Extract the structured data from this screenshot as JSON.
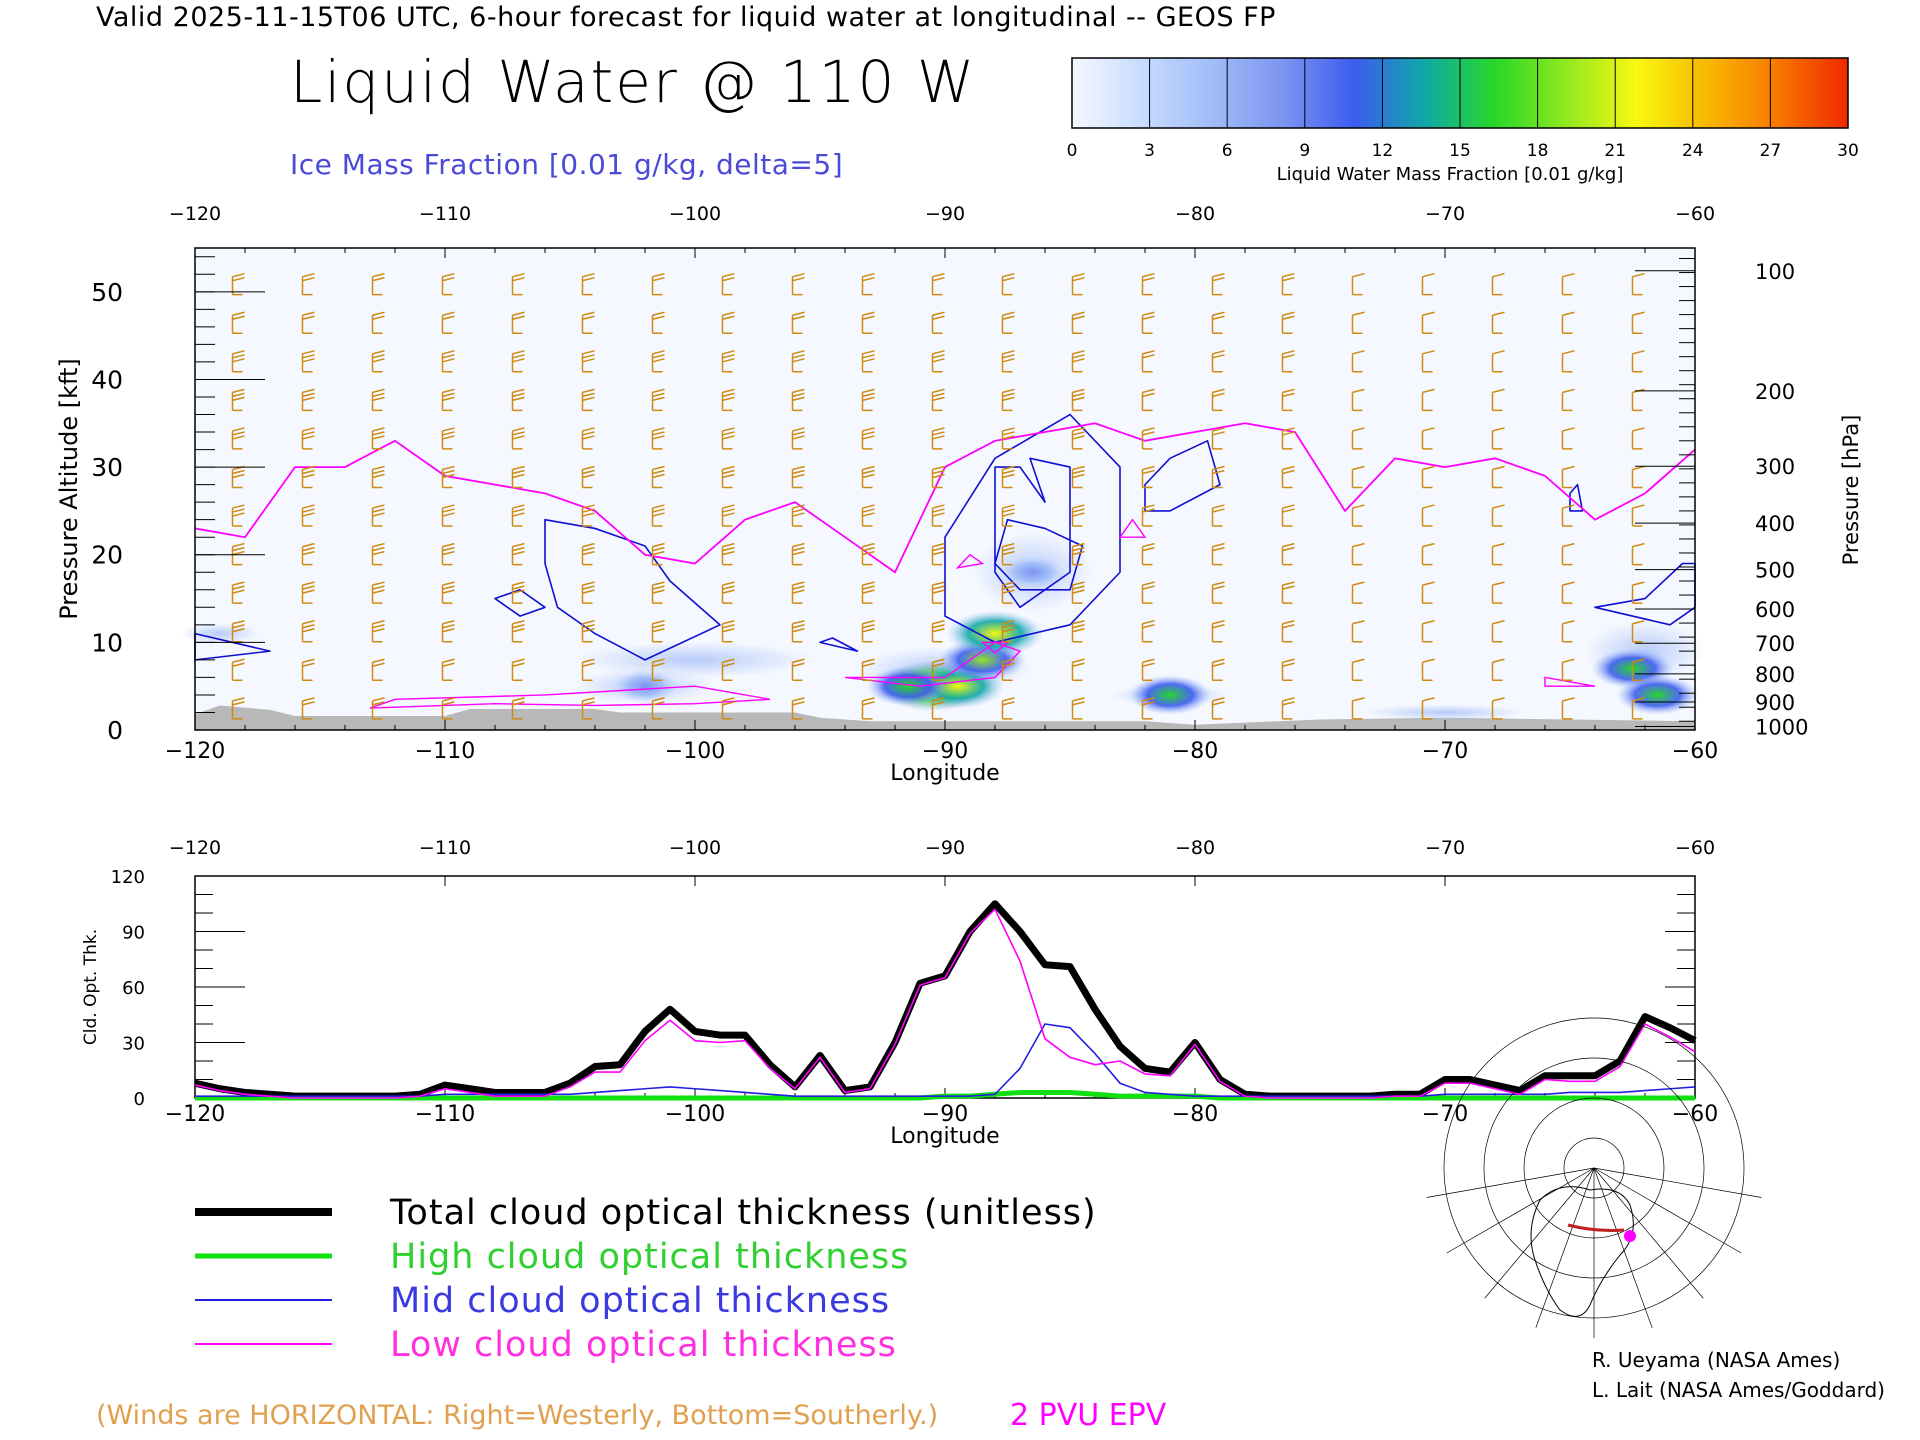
{
  "header": {
    "line": "Valid 2025-11-15T06 UTC, 6-hour forecast for liquid water at longitudinal -- GEOS FP",
    "title": "Liquid Water @ 110 W",
    "subtitle": "Ice Mass Fraction [0.01 g/kg, delta=5]"
  },
  "colorbar": {
    "label": "Liquid Water Mass Fraction [0.01 g/kg]",
    "ticks": [
      "0",
      "3",
      "6",
      "9",
      "12",
      "15",
      "18",
      "21",
      "24",
      "27",
      "30"
    ],
    "colors": [
      "#f4f8ff",
      "#c8dcff",
      "#a0bcf8",
      "#7c94f0",
      "#3c5cf0",
      "#10a8a8",
      "#28d828",
      "#90e820",
      "#f8f810",
      "#f8b800",
      "#f87800",
      "#f02800"
    ]
  },
  "chart_data": [
    {
      "type": "heatmap",
      "xlabel": "Longitude",
      "ylabel": "Pressure Altitude [kft]",
      "y2label": "Pressure [hPa]",
      "xlim": [
        -120,
        -60
      ],
      "ylim": [
        0,
        55
      ],
      "x_ticks": [
        "-120",
        "-110",
        "-100",
        "-90",
        "-80",
        "-70",
        "-60"
      ],
      "y_ticks": [
        "0",
        "10",
        "20",
        "30",
        "40",
        "50"
      ],
      "pressure_ticks": [
        "100",
        "200",
        "300",
        "400",
        "500",
        "600",
        "700",
        "800",
        "900",
        "1000"
      ],
      "liquid_cells": [
        {
          "lon": -90.5,
          "alt": 5,
          "value": 26
        },
        {
          "lon": -89.5,
          "alt": 5,
          "value": 21
        },
        {
          "lon": -88.5,
          "alt": 8,
          "value": 18
        },
        {
          "lon": -88,
          "alt": 11,
          "value": 22
        },
        {
          "lon": -91.5,
          "alt": 5,
          "value": 16
        },
        {
          "lon": -81,
          "alt": 4,
          "value": 16
        },
        {
          "lon": -62.5,
          "alt": 7,
          "value": 16
        },
        {
          "lon": -61.5,
          "alt": 4,
          "value": 16
        },
        {
          "lon": -102,
          "alt": 5,
          "value": 9
        },
        {
          "lon": -86.5,
          "alt": 18,
          "value": 9
        }
      ],
      "epv_2pvu_line": {
        "lon": [
          -120,
          -118,
          -116,
          -114,
          -112,
          -110,
          -108,
          -106,
          -104,
          -102,
          -100,
          -98,
          -96,
          -94,
          -92,
          -90,
          -88,
          -86,
          -84,
          -82,
          -80,
          -78,
          -76,
          -74,
          -72,
          -70,
          -68,
          -66,
          -64,
          -62,
          -60
        ],
        "alt": [
          23,
          22,
          30,
          30,
          33,
          29,
          28,
          27,
          25,
          20,
          19,
          24,
          26,
          22,
          18,
          30,
          33,
          34,
          35,
          33,
          34,
          35,
          34,
          25,
          31,
          30,
          31,
          29,
          24,
          27,
          32
        ]
      }
    },
    {
      "type": "line",
      "xlabel": "Longitude",
      "ylabel": "Cld. Opt. Thk.",
      "xlim": [
        -120,
        -60
      ],
      "ylim": [
        0,
        120
      ],
      "x_ticks": [
        "-120",
        "-110",
        "-100",
        "-90",
        "-80",
        "-70",
        "-60"
      ],
      "y_ticks": [
        "0",
        "30",
        "60",
        "90",
        "120"
      ],
      "x": [
        -120,
        -119,
        -118,
        -117,
        -116,
        -115,
        -114,
        -113,
        -112,
        -111,
        -110,
        -109,
        -108,
        -107,
        -106,
        -105,
        -104,
        -103,
        -102,
        -101,
        -100,
        -99,
        -98,
        -97,
        -96,
        -95,
        -94,
        -93,
        -92,
        -91,
        -90,
        -89,
        -88,
        -87,
        -86,
        -85,
        -84,
        -83,
        -82,
        -81,
        -80,
        -79,
        -78,
        -77,
        -76,
        -75,
        -74,
        -73,
        -72,
        -71,
        -70,
        -69,
        -68,
        -67,
        -66,
        -65,
        -64,
        -63,
        -62,
        -61,
        -60
      ],
      "series": [
        {
          "name": "Total cloud optical thickness (unitless)",
          "color": "#000000",
          "values": [
            8,
            5,
            3,
            2,
            1,
            1,
            1,
            1,
            1,
            2,
            7,
            5,
            3,
            3,
            3,
            8,
            17,
            18,
            36,
            48,
            36,
            34,
            34,
            18,
            6,
            23,
            4,
            6,
            30,
            62,
            66,
            90,
            105,
            90,
            72,
            71,
            48,
            28,
            16,
            14,
            30,
            10,
            2,
            1,
            1,
            1,
            1,
            1,
            2,
            2,
            10,
            10,
            7,
            4,
            12,
            12,
            12,
            20,
            44,
            38,
            31
          ]
        },
        {
          "name": "High cloud optical thickness",
          "color": "#10e010",
          "values": [
            0,
            0,
            0,
            0,
            0,
            0,
            0,
            0,
            0,
            0,
            0,
            0,
            0,
            0,
            0,
            0,
            0,
            0,
            0,
            0,
            0,
            0,
            0,
            0,
            0,
            0,
            0,
            0,
            0,
            0,
            1,
            1,
            2,
            3,
            3,
            3,
            2,
            1,
            1,
            1,
            1,
            0,
            0,
            0,
            0,
            0,
            0,
            0,
            0,
            0,
            0,
            0,
            0,
            0,
            0,
            0,
            0,
            0,
            0,
            0,
            0
          ]
        },
        {
          "name": "Mid cloud optical thickness",
          "color": "#2020e0",
          "values": [
            1,
            1,
            1,
            1,
            1,
            1,
            1,
            1,
            1,
            1,
            2,
            2,
            2,
            2,
            2,
            2,
            3,
            4,
            5,
            6,
            5,
            4,
            3,
            2,
            1,
            1,
            1,
            1,
            1,
            1,
            1,
            1,
            2,
            16,
            40,
            38,
            24,
            8,
            3,
            2,
            1,
            1,
            1,
            1,
            1,
            1,
            1,
            1,
            1,
            1,
            2,
            2,
            2,
            2,
            2,
            3,
            3,
            3,
            4,
            5,
            6
          ]
        },
        {
          "name": "Low cloud optical thickness",
          "color": "#ff00ff",
          "values": [
            7,
            4,
            2,
            1,
            0,
            0,
            0,
            0,
            0,
            1,
            5,
            3,
            1,
            1,
            1,
            6,
            14,
            14,
            31,
            42,
            31,
            30,
            31,
            16,
            5,
            22,
            3,
            5,
            29,
            61,
            65,
            89,
            102,
            74,
            32,
            22,
            18,
            20,
            13,
            12,
            29,
            9,
            1,
            0,
            0,
            0,
            0,
            0,
            1,
            1,
            8,
            8,
            5,
            2,
            10,
            9,
            9,
            17,
            40,
            33,
            25
          ]
        }
      ]
    }
  ],
  "legend": {
    "total": "Total cloud optical thickness (unitless)",
    "high": "High cloud optical thickness",
    "mid": "Mid cloud optical thickness",
    "low": "Low cloud optical thickness"
  },
  "notes": {
    "winds": "(Winds are HORIZONTAL: Right=Westerly, Bottom=Southerly.)",
    "epv": "2 PVU EPV"
  },
  "credits": {
    "line1": "R. Ueyama (NASA Ames)",
    "line2": "L. Lait (NASA Ames/Goddard)"
  },
  "colors": {
    "wind_barb": "#d08a10",
    "ice_contour": "#1010d0",
    "epv": "#ff00ff",
    "terrain": "#b8b8b8"
  }
}
